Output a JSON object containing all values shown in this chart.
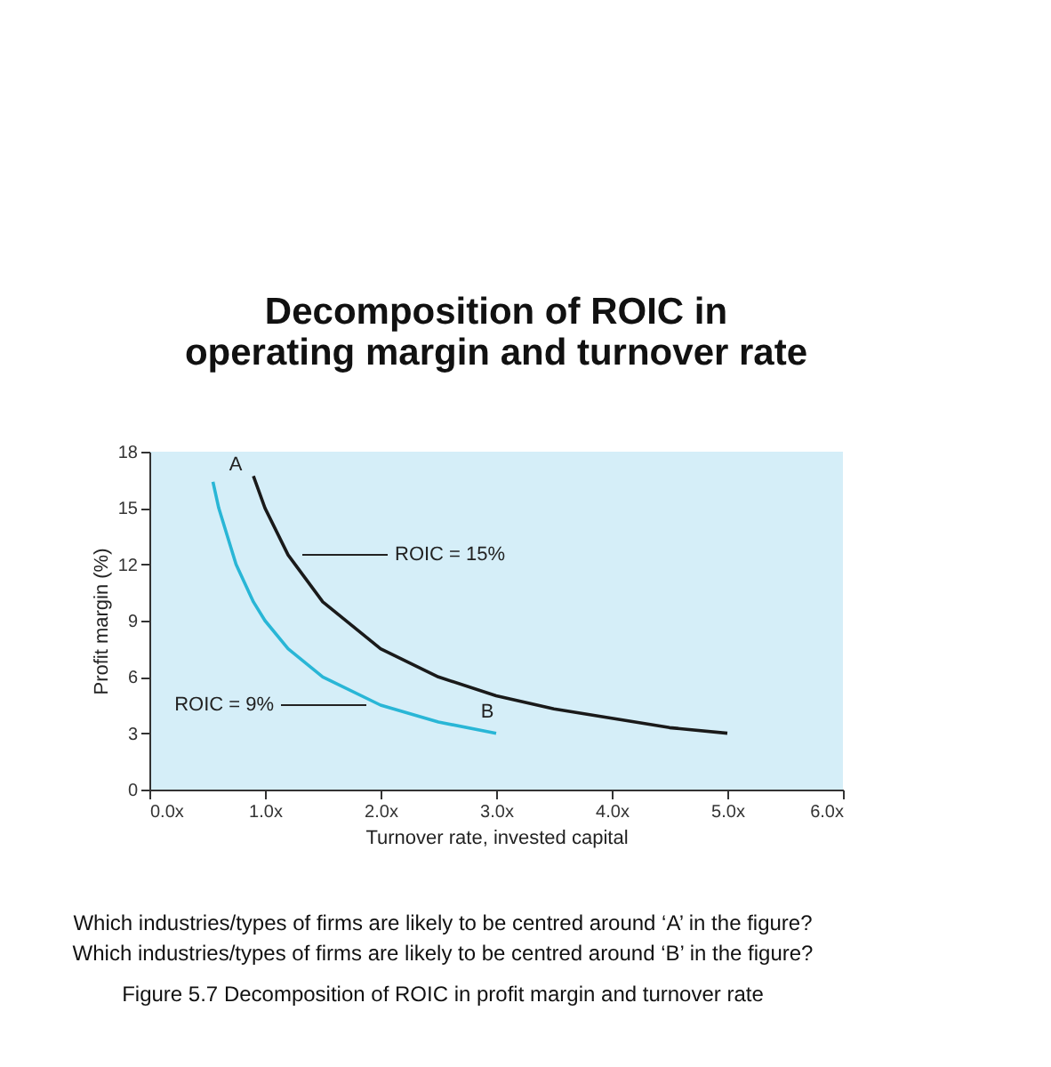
{
  "chart_data": {
    "type": "line",
    "title": "Decomposition of ROIC in operating margin and turnover rate",
    "xlabel": "Turnover rate, invested capital",
    "ylabel": "Profit margin (%)",
    "series": [
      {
        "name": "ROIC = 15%",
        "color": "#1a1a1a",
        "x": [
          0.9,
          1.0,
          1.2,
          1.5,
          2.0,
          2.5,
          3.0,
          3.5,
          4.0,
          4.5,
          5.0
        ],
        "values": [
          16.7,
          15,
          12.5,
          10,
          7.5,
          6,
          5,
          4.3,
          3.8,
          3.3,
          3.0
        ]
      },
      {
        "name": "ROIC = 9%",
        "color": "#29b6d6",
        "x": [
          0.55,
          0.6,
          0.75,
          0.9,
          1.0,
          1.2,
          1.5,
          2.0,
          2.5,
          3.0
        ],
        "values": [
          16.4,
          15,
          12,
          10,
          9,
          7.5,
          6,
          4.5,
          3.6,
          3.0
        ]
      }
    ],
    "xlim": [
      0,
      6
    ],
    "ylim": [
      0,
      18
    ],
    "xticks": [
      {
        "value": 0,
        "label": "0.0x"
      },
      {
        "value": 1,
        "label": "1.0x"
      },
      {
        "value": 2,
        "label": "2.0x"
      },
      {
        "value": 3,
        "label": "3.0x"
      },
      {
        "value": 4,
        "label": "4.0x"
      },
      {
        "value": 5,
        "label": "5.0x"
      },
      {
        "value": 6,
        "label": "6.0x"
      }
    ],
    "yticks": [
      0,
      3,
      6,
      9,
      12,
      15,
      18
    ],
    "grid": false,
    "annotations": [
      "A",
      "B",
      "Which industries/types of firms are likely to be centred around ‘A’ in the figure?",
      "Which industries/types of firms are likely to be centred around ‘B’ in the figure?",
      "Figure 5.7 Decomposition of ROIC in profit margin and turnover rate"
    ]
  }
}
